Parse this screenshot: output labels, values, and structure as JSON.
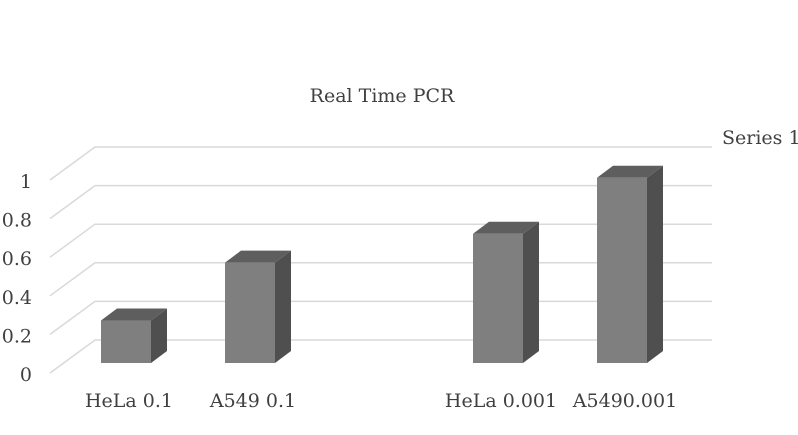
{
  "chart_data": {
    "type": "bar3d",
    "title": "Real Time PCR",
    "categories": [
      "HeLa 0.1",
      "A549 0.1",
      null,
      "HeLa 0.001",
      "A5490.001"
    ],
    "series": [
      {
        "name": "Series 1",
        "color": "#7f7f7f",
        "values": [
          0.22,
          0.52,
          null,
          0.67,
          0.96
        ]
      }
    ],
    "ylim": [
      0,
      1
    ],
    "yticks": [
      0,
      0.2,
      0.4,
      0.6,
      0.8,
      1
    ],
    "grid": true,
    "legend": "top-right"
  }
}
